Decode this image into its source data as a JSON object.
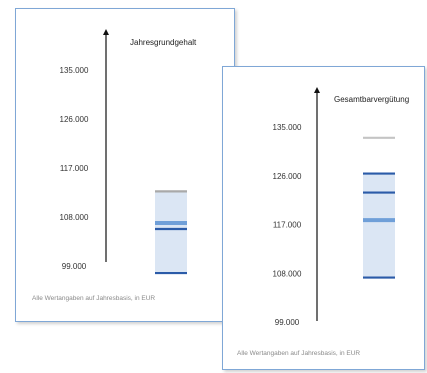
{
  "chart_data": [
    {
      "type": "range-band",
      "title": "Jahresgrundgehalt",
      "yticks": [
        "135.000",
        "126.000",
        "117.000",
        "108.000",
        "99.000"
      ],
      "ytick_values": [
        135000,
        126000,
        117000,
        108000,
        99000
      ],
      "ylim": [
        97000,
        141000
      ],
      "band": {
        "low": 97700,
        "high": 112700
      },
      "markers": [
        {
          "value": 112700,
          "color": "#a9a9a9"
        },
        {
          "value": 106900,
          "color": "#6f9fd8"
        },
        {
          "value": 105800,
          "color": "#2b5ba8"
        },
        {
          "value": 97700,
          "color": "#2b5ba8"
        }
      ],
      "footnote": "Alle Wertangaben auf Jahresbasis, in EUR"
    },
    {
      "type": "range-band",
      "title": "Gesamtbarvergütung",
      "yticks": [
        "135.000",
        "126.000",
        "117.000",
        "108.000",
        "99.000"
      ],
      "ytick_values": [
        135000,
        126000,
        117000,
        108000,
        99000
      ],
      "ylim": [
        97000,
        141000
      ],
      "band": {
        "low": 107200,
        "high": 126400
      },
      "markers": [
        {
          "value": 133000,
          "color": "#c4c4c4"
        },
        {
          "value": 126400,
          "color": "#2b5ba8"
        },
        {
          "value": 122900,
          "color": "#2b5ba8"
        },
        {
          "value": 117800,
          "color": "#6f9fd8"
        },
        {
          "value": 107200,
          "color": "#2b5ba8"
        }
      ],
      "footnote": "Alle Wertangaben auf Jahresbasis, in EUR"
    }
  ]
}
